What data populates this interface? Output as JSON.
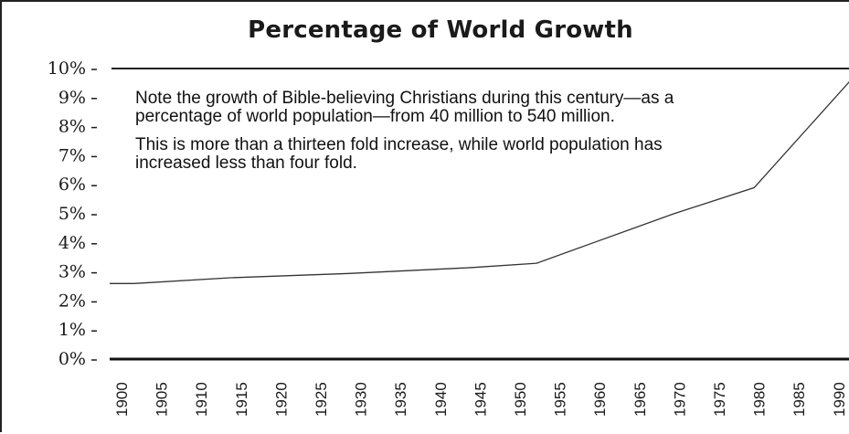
{
  "chart_data": {
    "type": "line",
    "title": "Percentage of World Growth",
    "xlabel": "",
    "ylabel": "",
    "grid": false,
    "legend": "none",
    "ylim": [
      0,
      10
    ],
    "xlim": [
      1900,
      1992
    ],
    "y_ticks": [
      "0%",
      "1%",
      "2%",
      "3%",
      "4%",
      "5%",
      "6%",
      "7%",
      "8%",
      "9%",
      "10%"
    ],
    "x_ticks": [
      "1900",
      "1905",
      "1910",
      "1915",
      "1920",
      "1925",
      "1930",
      "1935",
      "1940",
      "1945",
      "1950",
      "1955",
      "1960",
      "1965",
      "1970",
      "1975",
      "1980",
      "1985",
      "1990"
    ],
    "series": [
      {
        "color": "#333333",
        "points": [
          {
            "x": 1900,
            "y": 2.6
          },
          {
            "x": 1903,
            "y": 2.6
          },
          {
            "x": 1915,
            "y": 2.8
          },
          {
            "x": 1930,
            "y": 2.95
          },
          {
            "x": 1945,
            "y": 3.15
          },
          {
            "x": 1953,
            "y": 3.3
          },
          {
            "x": 1960,
            "y": 4.0
          },
          {
            "x": 1970,
            "y": 5.0
          },
          {
            "x": 1980,
            "y": 5.9
          },
          {
            "x": 1992,
            "y": 9.6
          }
        ]
      }
    ],
    "annotations": [
      "Note the growth of Bible-believing Christians during this century—as a percentage of world population—from 40 million to 540 million.",
      "This is more than a thirteen fold increase, while world population has increased less than four fold."
    ]
  }
}
